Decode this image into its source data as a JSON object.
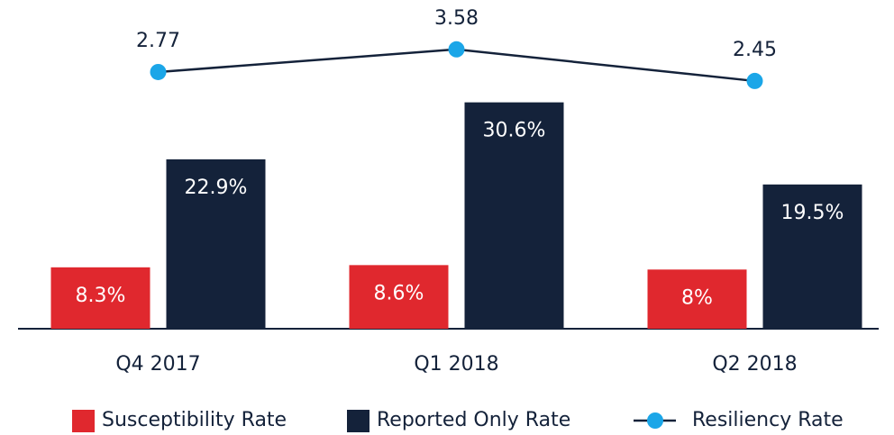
{
  "chart_data": {
    "type": "bar_line",
    "categories": [
      "Q4 2017",
      "Q1 2018",
      "Q2 2018"
    ],
    "series": [
      {
        "name": "Susceptibility Rate",
        "type": "bar",
        "color": "#e0282e",
        "values": [
          8.3,
          8.6,
          8
        ],
        "value_labels": [
          "8.3%",
          "8.6%",
          "8%"
        ]
      },
      {
        "name": "Reported Only Rate",
        "type": "bar",
        "color": "#14223a",
        "values": [
          22.9,
          30.6,
          19.5
        ],
        "value_labels": [
          "22.9%",
          "30.6%",
          "19.5%"
        ]
      },
      {
        "name": "Resiliency Rate",
        "type": "line",
        "axis": "y2",
        "color": "#14223a",
        "marker_color": "#1ba6e8",
        "values": [
          2.77,
          3.58,
          2.45
        ]
      }
    ],
    "ylim": [
      0,
      42
    ],
    "y2lim": [
      -6.4,
      4.7
    ],
    "legend": "bottom"
  }
}
